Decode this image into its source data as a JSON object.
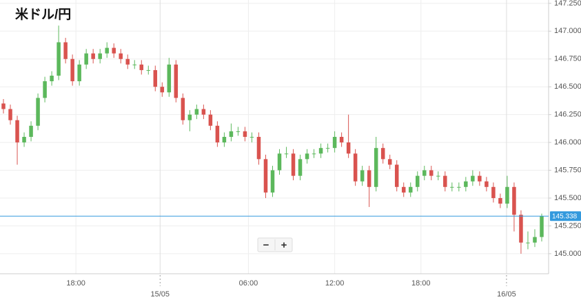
{
  "chart_data": {
    "type": "candlestick",
    "title": "米ドル/円",
    "open": [
      146.35,
      146.3,
      146.2,
      146.0,
      146.05,
      146.15,
      146.4,
      146.55,
      146.6,
      146.9,
      146.75,
      146.55,
      146.7,
      146.8,
      146.75,
      146.8,
      146.85,
      146.8,
      146.75,
      146.7,
      146.7,
      146.65,
      146.65,
      146.5,
      146.45,
      146.7,
      146.4,
      146.2,
      146.25,
      146.3,
      146.25,
      146.15,
      146.0,
      146.05,
      146.1,
      146.1,
      146.05,
      146.05,
      145.85,
      145.55,
      145.75,
      145.9,
      145.9,
      145.7,
      145.85,
      145.9,
      145.9,
      145.95,
      145.95,
      146.05,
      146.0,
      145.9,
      145.65,
      145.75,
      145.6,
      145.95,
      145.85,
      145.8,
      145.6,
      145.55,
      145.6,
      145.7,
      145.75,
      145.7,
      145.7,
      145.6,
      145.6,
      145.6,
      145.65,
      145.7,
      145.65,
      145.6,
      145.5,
      145.45,
      145.6,
      145.35,
      145.1,
      145.1,
      145.15
    ],
    "high": [
      146.39,
      146.34,
      146.24,
      146.09,
      146.19,
      146.44,
      146.59,
      146.64,
      147.05,
      146.94,
      146.79,
      146.74,
      146.84,
      146.84,
      146.84,
      146.9,
      146.89,
      146.84,
      146.79,
      146.74,
      146.74,
      146.69,
      146.69,
      146.54,
      146.76,
      146.74,
      146.44,
      146.29,
      146.34,
      146.34,
      146.29,
      146.19,
      146.09,
      146.17,
      146.14,
      146.14,
      146.09,
      146.09,
      145.89,
      145.79,
      145.94,
      145.96,
      145.94,
      145.89,
      145.94,
      145.94,
      145.99,
      145.99,
      146.1,
      146.09,
      146.25,
      145.94,
      145.79,
      145.79,
      146.05,
      145.99,
      145.89,
      145.84,
      145.64,
      145.64,
      145.74,
      145.79,
      145.79,
      145.74,
      145.74,
      145.64,
      145.64,
      145.69,
      145.75,
      145.74,
      145.69,
      145.64,
      145.54,
      145.7,
      145.64,
      145.39,
      145.2,
      145.22,
      145.36
    ],
    "low": [
      146.26,
      146.16,
      145.8,
      145.96,
      146.01,
      146.11,
      146.36,
      146.51,
      146.56,
      146.71,
      146.51,
      146.51,
      146.66,
      146.71,
      146.71,
      146.76,
      146.76,
      146.71,
      146.66,
      146.66,
      146.61,
      146.61,
      146.46,
      146.41,
      146.41,
      146.36,
      146.16,
      146.1,
      146.21,
      146.21,
      146.11,
      145.96,
      145.96,
      146.01,
      146.06,
      146.01,
      146.0,
      145.8,
      145.5,
      145.51,
      145.71,
      145.86,
      145.66,
      145.66,
      145.81,
      145.86,
      145.86,
      145.91,
      145.91,
      145.96,
      145.86,
      145.61,
      145.61,
      145.42,
      145.56,
      145.81,
      145.76,
      145.56,
      145.51,
      145.51,
      145.56,
      145.66,
      145.66,
      145.66,
      145.56,
      145.56,
      145.56,
      145.56,
      145.61,
      145.61,
      145.56,
      145.46,
      145.41,
      145.41,
      145.2,
      145.0,
      145.04,
      145.06,
      145.11
    ],
    "close": [
      146.3,
      146.2,
      146.0,
      146.05,
      146.15,
      146.4,
      146.55,
      146.6,
      146.9,
      146.75,
      146.55,
      146.7,
      146.8,
      146.75,
      146.8,
      146.85,
      146.8,
      146.75,
      146.7,
      146.7,
      146.65,
      146.65,
      146.5,
      146.45,
      146.7,
      146.4,
      146.2,
      146.25,
      146.3,
      146.25,
      146.15,
      146.0,
      146.05,
      146.1,
      146.1,
      146.05,
      146.05,
      145.85,
      145.55,
      145.75,
      145.9,
      145.9,
      145.7,
      145.85,
      145.9,
      145.9,
      145.95,
      145.95,
      146.05,
      146.0,
      145.9,
      145.65,
      145.75,
      145.6,
      145.95,
      145.85,
      145.8,
      145.6,
      145.55,
      145.6,
      145.7,
      145.75,
      145.7,
      145.7,
      145.6,
      145.6,
      145.6,
      145.65,
      145.7,
      145.65,
      145.6,
      145.5,
      145.45,
      145.6,
      145.35,
      145.1,
      145.1,
      145.15,
      145.338
    ],
    "up_color": "#5cb85c",
    "down_color": "#d9534f",
    "ylim": [
      144.82,
      147.28
    ],
    "yticks": [
      {
        "value": 145.0,
        "label": "145.000"
      },
      {
        "value": 145.25,
        "label": "145.250"
      },
      {
        "value": 145.5,
        "label": "145.500"
      },
      {
        "value": 145.75,
        "label": "145.750"
      },
      {
        "value": 146.0,
        "label": "146.000"
      },
      {
        "value": 146.25,
        "label": "146.250"
      },
      {
        "value": 146.5,
        "label": "146.500"
      },
      {
        "value": 146.75,
        "label": "146.750"
      },
      {
        "value": 147.0,
        "label": "147.000"
      },
      {
        "value": 147.25,
        "label": "147.250"
      }
    ],
    "xlim": [
      -0.5,
      79
    ],
    "xticks": [
      {
        "value": 10.5,
        "label": "18:00"
      },
      {
        "value": 35.5,
        "label": "06:00"
      },
      {
        "value": 48,
        "label": "12:00"
      },
      {
        "value": 60.5,
        "label": "18:00"
      }
    ],
    "xdate_ticks": [
      {
        "value": 22.7,
        "label": "15/05"
      },
      {
        "value": 72.9,
        "label": "16/05"
      }
    ],
    "current_price": 145.338,
    "current_color": "#3399dd",
    "grid": true,
    "zoom": [
      "−",
      "+"
    ]
  }
}
